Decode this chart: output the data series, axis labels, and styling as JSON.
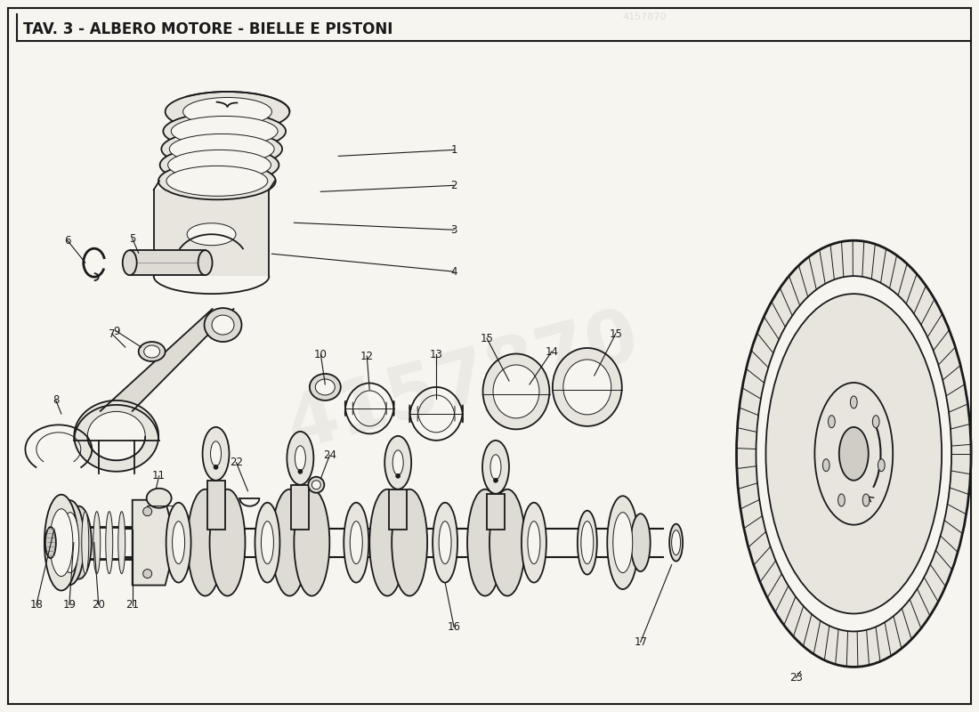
{
  "title": "TAV. 3 - ALBERO MOTORE - BIELLE E PISTONI",
  "background_color": "#f7f5f0",
  "title_color": "#1a1a1a",
  "title_fontsize": 12,
  "line_color": "#1a1a1a",
  "border_color": "#1a1a1a",
  "watermark_text": "4157870",
  "watermark_color": "#ccc9c0",
  "watermark_alpha": 0.25,
  "fig_width": 11.0,
  "fig_height": 8.0,
  "lw_main": 1.3,
  "lw_thin": 0.7,
  "lw_thick": 2.0,
  "face_gray": "#e8e5df",
  "face_dark": "#d0cdc7",
  "face_mid": "#dedad4"
}
